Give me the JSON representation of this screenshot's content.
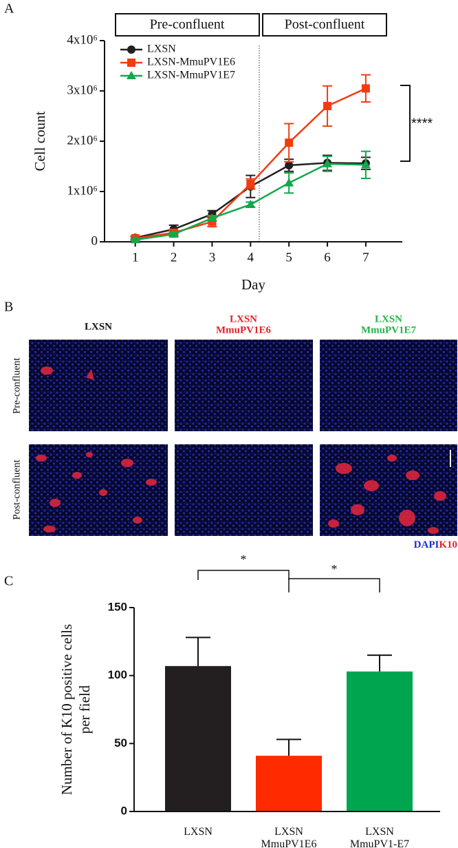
{
  "panel_labels": [
    "A",
    "B",
    "C"
  ],
  "chart_data": [
    {
      "type": "line",
      "xlabel": "Day",
      "ylabel": "Cell count",
      "x": [
        1,
        2,
        3,
        4,
        5,
        6,
        7
      ],
      "xlim": [
        0.2,
        7.95
      ],
      "xticks": [
        1,
        2,
        3,
        4,
        5,
        6,
        7
      ],
      "ylim": [
        0,
        4000000
      ],
      "yticks": [
        0,
        {
          "value": 1000000,
          "label": "1x10⁶"
        },
        {
          "value": 2000000,
          "label": "2x10⁶"
        },
        {
          "value": 3000000,
          "label": "3x10⁶"
        },
        {
          "value": 4000000,
          "label": "4x10⁶"
        }
      ],
      "series": [
        {
          "name": "LXSN",
          "color": "#231f20",
          "marker": "circle",
          "values": [
            80000,
            250000,
            550000,
            1100000,
            1520000,
            1570000,
            1560000
          ],
          "errors": [
            30000,
            80000,
            70000,
            220000,
            120000,
            150000,
            120000
          ]
        },
        {
          "name": "LXSN-MmuPV1E6",
          "color": "#f03c10",
          "marker": "square",
          "values": [
            70000,
            180000,
            400000,
            1150000,
            1970000,
            2700000,
            3050000
          ],
          "errors": [
            30000,
            50000,
            100000,
            100000,
            380000,
            400000,
            270000
          ]
        },
        {
          "name": "LXSN-MmuPV1E7",
          "color": "#13a84a",
          "marker": "triangle",
          "values": [
            40000,
            150000,
            470000,
            740000,
            1170000,
            1550000,
            1530000
          ],
          "errors": [
            20000,
            40000,
            50000,
            50000,
            200000,
            150000,
            270000
          ]
        }
      ],
      "annotations": [
        "Pre-confluent",
        "Post-confluent",
        "****"
      ]
    },
    {
      "type": "bar",
      "ylabel": [
        "Number of K10 positive cells",
        "per field"
      ],
      "categories": [
        [
          "LXSN"
        ],
        [
          "LXSN",
          "MmuPV1E6"
        ],
        [
          "LXSN",
          "MmuPV1-E7"
        ]
      ],
      "values": [
        107,
        41,
        103
      ],
      "errors": [
        21,
        12,
        12
      ],
      "colors": [
        "#231f20",
        "#ff2a00",
        "#00a550"
      ],
      "ylim": [
        0,
        150
      ],
      "yticks": [
        0,
        50,
        100,
        150
      ],
      "annotations": [
        "*",
        "*"
      ]
    }
  ],
  "micrographs": {
    "columns": [
      [
        "LXSN"
      ],
      [
        "LXSN",
        "MmuPV1E6"
      ],
      [
        "LXSN",
        "MmuPV1E7"
      ]
    ],
    "rows": [
      "Pre-confluent",
      "Post-confluent"
    ],
    "stain_legend": [
      "DAPI",
      "K10"
    ]
  }
}
